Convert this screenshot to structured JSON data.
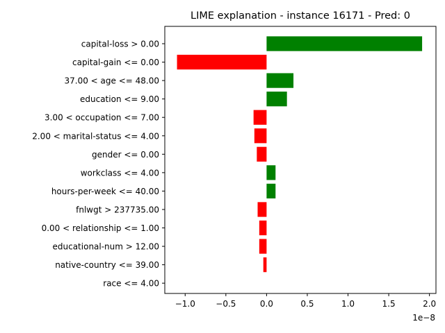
{
  "chart_data": {
    "type": "bar",
    "orientation": "horizontal",
    "title": "LIME explanation - instance 16171 - Pred: 0",
    "xlabel": "",
    "ylabel": "",
    "x_scale_label": "1e−8",
    "x_scale_factor": 1e-08,
    "xlim": [
      -1.25,
      2.08
    ],
    "x_ticks": [
      -1.0,
      -0.5,
      0.0,
      0.5,
      1.0,
      1.5,
      2.0
    ],
    "x_tick_labels": [
      "−1.0",
      "−0.5",
      "0.0",
      "0.5",
      "1.0",
      "1.5",
      "2.0"
    ],
    "grid": false,
    "legend": "none",
    "positive_color": "#008000",
    "negative_color": "#ff0000",
    "categories": [
      "capital-loss > 0.00",
      "capital-gain <= 0.00",
      "37.00 < age <= 48.00",
      "education <= 9.00",
      "3.00 < occupation <= 7.00",
      "2.00 < marital-status <= 4.00",
      "gender <= 0.00",
      "workclass <= 4.00",
      "hours-per-week <= 40.00",
      "fnlwgt > 237735.00",
      "0.00 < relationship <= 1.00",
      "educational-num > 12.00",
      "native-country <= 39.00",
      "race <= 4.00"
    ],
    "values": [
      1.91,
      -1.1,
      0.33,
      0.25,
      -0.16,
      -0.15,
      -0.12,
      0.11,
      0.11,
      -0.11,
      -0.09,
      -0.09,
      -0.04,
      0.0
    ]
  }
}
